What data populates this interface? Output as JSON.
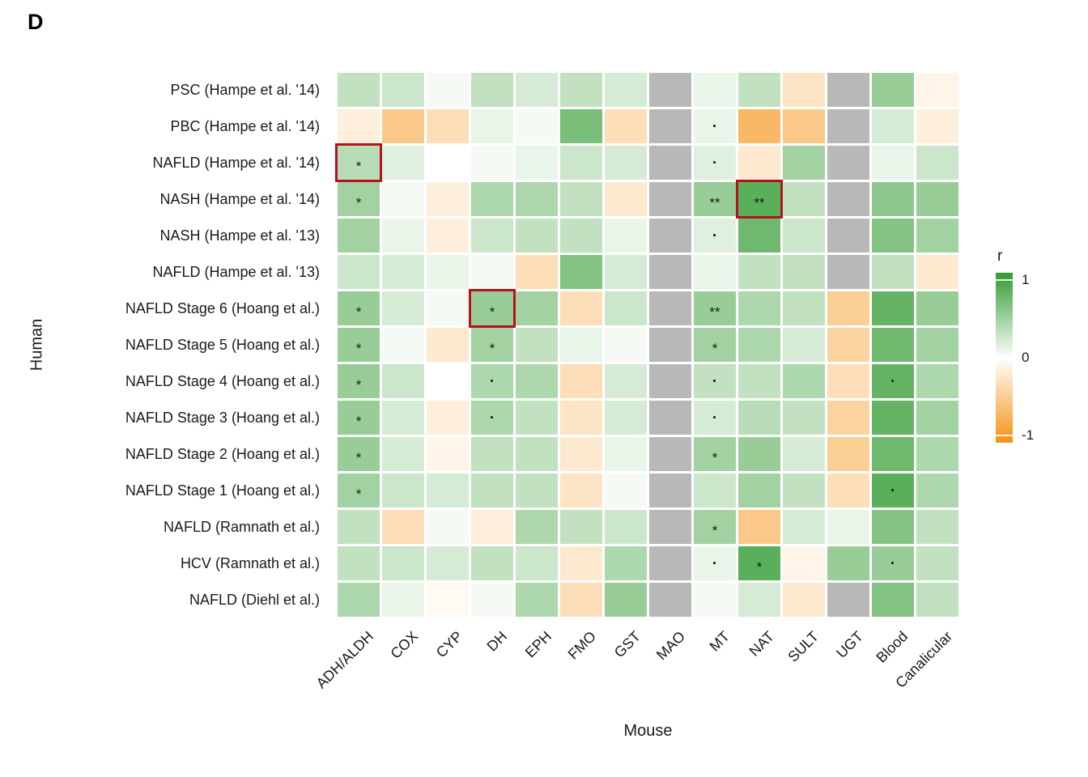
{
  "panel_label": "D",
  "axes": {
    "x_title": "Mouse",
    "y_title": "Human"
  },
  "legend": {
    "title": "r",
    "ticks": [
      {
        "label": "1",
        "value": 1
      },
      {
        "label": "0",
        "value": 0
      },
      {
        "label": "-1",
        "value": -1
      }
    ]
  },
  "colors": {
    "positive": "#319b31",
    "negative": "#f59213",
    "na": "#b8b8b8",
    "highlight_box": "#b5121b"
  },
  "chart_data": {
    "type": "heatmap",
    "value_range": [
      -1,
      1
    ],
    "x_categories": [
      "ADH/ALDH",
      "COX",
      "CYP",
      "DH",
      "EPH",
      "FMO",
      "GST",
      "MAO",
      "MT",
      "NAT",
      "SULT",
      "UGT",
      "Blood",
      "Canalicular"
    ],
    "y_categories": [
      "PSC (Hampe et al. '14)",
      "PBC (Hampe et al. '14)",
      "NAFLD (Hampe et al. '14)",
      "NASH (Hampe et al. '14)",
      "NASH (Hampe et al. '13)",
      "NAFLD (Hampe et al. '13)",
      "NAFLD Stage 6 (Hoang et al.)",
      "NAFLD Stage 5 (Hoang et al.)",
      "NAFLD Stage 4 (Hoang et al.)",
      "NAFLD Stage 3 (Hoang et al.)",
      "NAFLD Stage 2 (Hoang et al.)",
      "NAFLD Stage 1 (Hoang et al.)",
      "NAFLD (Ramnath et al.)",
      "HCV (Ramnath et al.)",
      "NAFLD (Diehl et al.)"
    ],
    "values": [
      [
        0.3,
        0.25,
        0.05,
        0.3,
        0.2,
        0.3,
        0.2,
        null,
        0.1,
        0.3,
        -0.25,
        null,
        0.5,
        -0.1
      ],
      [
        -0.15,
        -0.5,
        -0.3,
        0.1,
        0.05,
        0.65,
        -0.3,
        null,
        0.1,
        -0.65,
        -0.5,
        null,
        0.2,
        -0.15
      ],
      [
        0.35,
        0.15,
        0.0,
        0.05,
        0.1,
        0.25,
        0.2,
        null,
        0.15,
        -0.2,
        0.45,
        null,
        0.1,
        0.25
      ],
      [
        0.45,
        0.05,
        -0.15,
        0.4,
        0.4,
        0.3,
        -0.2,
        null,
        0.5,
        0.8,
        0.3,
        null,
        0.55,
        0.5
      ],
      [
        0.45,
        0.1,
        -0.15,
        0.25,
        0.3,
        0.3,
        0.1,
        null,
        0.15,
        0.7,
        0.25,
        null,
        0.6,
        0.45
      ],
      [
        0.25,
        0.2,
        0.1,
        0.05,
        -0.3,
        0.6,
        0.2,
        null,
        0.1,
        0.3,
        0.3,
        null,
        0.3,
        -0.2
      ],
      [
        0.5,
        0.2,
        0.05,
        0.5,
        0.45,
        -0.3,
        0.25,
        null,
        0.5,
        0.4,
        0.3,
        -0.45,
        0.75,
        0.5
      ],
      [
        0.5,
        0.05,
        -0.2,
        0.45,
        0.3,
        0.1,
        0.05,
        null,
        0.45,
        0.4,
        0.2,
        -0.4,
        0.7,
        0.45
      ],
      [
        0.5,
        0.25,
        0.0,
        0.4,
        0.4,
        -0.3,
        0.2,
        null,
        0.3,
        0.3,
        0.4,
        -0.3,
        0.75,
        0.4
      ],
      [
        0.5,
        0.2,
        -0.15,
        0.4,
        0.3,
        -0.25,
        0.2,
        null,
        0.2,
        0.35,
        0.3,
        -0.4,
        0.75,
        0.45
      ],
      [
        0.5,
        0.2,
        -0.1,
        0.3,
        0.3,
        -0.2,
        0.1,
        null,
        0.45,
        0.5,
        0.2,
        -0.45,
        0.7,
        0.4
      ],
      [
        0.45,
        0.25,
        0.2,
        0.3,
        0.3,
        -0.25,
        0.05,
        null,
        0.25,
        0.45,
        0.3,
        -0.3,
        0.8,
        0.4
      ],
      [
        0.3,
        -0.3,
        0.05,
        -0.15,
        0.4,
        0.3,
        0.25,
        null,
        0.45,
        -0.5,
        0.2,
        0.1,
        0.6,
        0.3
      ],
      [
        0.3,
        0.25,
        0.2,
        0.3,
        0.25,
        -0.2,
        0.4,
        null,
        0.1,
        0.8,
        -0.1,
        0.5,
        0.5,
        0.3
      ],
      [
        0.4,
        0.1,
        -0.05,
        0.05,
        0.4,
        -0.3,
        0.5,
        null,
        0.05,
        0.2,
        -0.2,
        null,
        0.6,
        0.3
      ]
    ],
    "significance": [
      [
        "",
        "",
        "",
        "",
        "",
        "",
        "",
        "",
        "",
        "",
        "",
        "",
        "",
        ""
      ],
      [
        "",
        "",
        "",
        "",
        "",
        "",
        "",
        "",
        "·",
        "",
        "",
        "",
        "",
        ""
      ],
      [
        "*",
        "",
        "",
        "",
        "",
        "",
        "",
        "",
        "·",
        "",
        "",
        "",
        "",
        ""
      ],
      [
        "*",
        "",
        "",
        "",
        "",
        "",
        "",
        "",
        "**",
        "**",
        "",
        "",
        "",
        ""
      ],
      [
        "",
        "",
        "",
        "",
        "",
        "",
        "",
        "",
        "·",
        "",
        "",
        "",
        "",
        ""
      ],
      [
        "",
        "",
        "",
        "",
        "",
        "",
        "",
        "",
        "",
        "",
        "",
        "",
        "",
        ""
      ],
      [
        "*",
        "",
        "",
        "*",
        "",
        "",
        "",
        "",
        "**",
        "",
        "",
        "",
        "",
        ""
      ],
      [
        "*",
        "",
        "",
        "*",
        "",
        "",
        "",
        "",
        "*",
        "",
        "",
        "",
        "",
        ""
      ],
      [
        "*",
        "",
        "",
        "·",
        "",
        "",
        "",
        "",
        "·",
        "",
        "",
        "",
        "·",
        ""
      ],
      [
        "*",
        "",
        "",
        "·",
        "",
        "",
        "",
        "",
        "·",
        "",
        "",
        "",
        "",
        ""
      ],
      [
        "*",
        "",
        "",
        "",
        "",
        "",
        "",
        "",
        "*",
        "",
        "",
        "",
        "",
        ""
      ],
      [
        "*",
        "",
        "",
        "",
        "",
        "",
        "",
        "",
        "",
        "",
        "",
        "",
        "·",
        ""
      ],
      [
        "",
        "",
        "",
        "",
        "",
        "",
        "",
        "",
        "*",
        "",
        "",
        "",
        "",
        ""
      ],
      [
        "",
        "",
        "",
        "",
        "",
        "",
        "",
        "",
        "·",
        "*",
        "",
        "",
        "·",
        ""
      ],
      [
        "",
        "",
        "",
        "",
        "",
        "",
        "",
        "",
        "",
        "",
        "",
        "",
        "",
        ""
      ]
    ],
    "boxed_cells": [
      {
        "row": 2,
        "col": 0
      },
      {
        "row": 3,
        "col": 9
      },
      {
        "row": 6,
        "col": 3
      }
    ]
  }
}
